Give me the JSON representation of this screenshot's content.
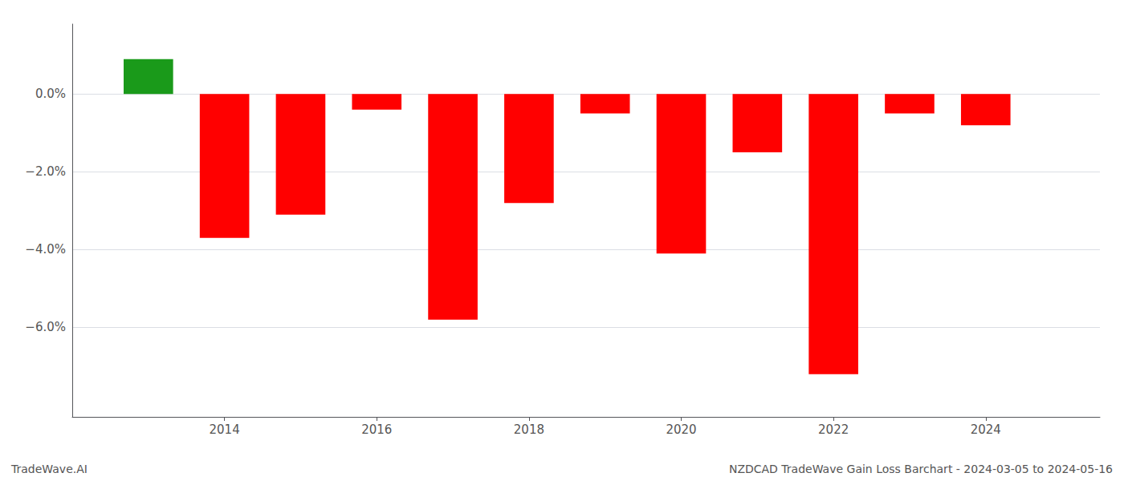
{
  "chart_data": {
    "type": "bar",
    "title": "NZDCAD TradeWave Gain Loss Barchart - 2024-03-05 to 2024-05-16",
    "annotations": [
      "TradeWave.AI"
    ],
    "x": [
      2013,
      2014,
      2015,
      2016,
      2017,
      2018,
      2019,
      2020,
      2021,
      2022,
      2023,
      2024
    ],
    "values": [
      0.009,
      -0.037,
      -0.031,
      -0.004,
      -0.058,
      -0.028,
      -0.005,
      -0.041,
      -0.015,
      -0.072,
      -0.005,
      -0.008
    ],
    "colors": [
      "#1a9a1a",
      "#ff0000",
      "#ff0000",
      "#ff0000",
      "#ff0000",
      "#ff0000",
      "#ff0000",
      "#ff0000",
      "#ff0000",
      "#ff0000",
      "#ff0000",
      "#ff0000"
    ],
    "xlim": [
      2012.0,
      2025.5
    ],
    "xticks": [
      2014,
      2016,
      2018,
      2020,
      2022,
      2024
    ],
    "ylim": [
      -0.083,
      0.018
    ],
    "yticks": [
      {
        "value": 0.0,
        "label": "0.0%"
      },
      {
        "value": -0.02,
        "label": "−2.0%"
      },
      {
        "value": -0.04,
        "label": "−4.0%"
      },
      {
        "value": -0.06,
        "label": "−6.0%"
      }
    ],
    "grid": true
  }
}
